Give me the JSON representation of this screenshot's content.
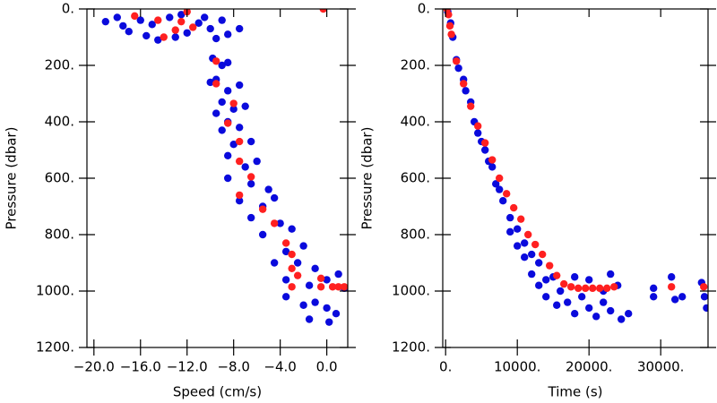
{
  "chart_data": [
    {
      "type": "scatter",
      "x_label": "Speed (cm/s)",
      "y_label": "Pressure (dbar)",
      "xlim": [
        -20.6,
        1.8
      ],
      "ylim": [
        0,
        1200
      ],
      "invert_y": true,
      "xticks": [
        {
          "value": -20,
          "label": "−20.0"
        },
        {
          "value": -16,
          "label": "−16.0"
        },
        {
          "value": -12,
          "label": "−12.0"
        },
        {
          "value": -8,
          "label": "−8.0"
        },
        {
          "value": -4,
          "label": "−4.0"
        },
        {
          "value": 0,
          "label": "0.0"
        }
      ],
      "yticks": [
        {
          "value": 0,
          "label": "0."
        },
        {
          "value": 200,
          "label": "200."
        },
        {
          "value": 400,
          "label": "400."
        },
        {
          "value": 600,
          "label": "600."
        },
        {
          "value": 800,
          "label": "800."
        },
        {
          "value": 1000,
          "label": "1000."
        },
        {
          "value": 1200,
          "label": "1200."
        }
      ],
      "series": [
        {
          "color": "#0a0adc",
          "x": [
            -19,
            -18,
            -17.5,
            -17,
            -16,
            -15.5,
            -15,
            -14.5,
            -13.5,
            -13,
            -12.5,
            -12,
            -11,
            -10.5,
            -10,
            -9.5,
            -9,
            -8.5,
            -7.5,
            -9.8,
            -9,
            -8.5,
            -9.5,
            -8.5,
            -7.5,
            -10,
            -9,
            -8,
            -7,
            -9.5,
            -8.5,
            -7.5,
            -9,
            -8,
            -6.5,
            -8.5,
            -7,
            -6,
            -8.5,
            -6.5,
            -5,
            -7.5,
            -5.5,
            -4.5,
            -6.5,
            -4,
            -3,
            -5.5,
            -3.5,
            -2,
            -4.5,
            -2.5,
            -1,
            -3.5,
            -1.5,
            0,
            1,
            1.5,
            -1,
            0,
            0.8,
            -2,
            -1.5,
            0.2,
            -3.5
          ],
          "values": [
            45,
            30,
            60,
            80,
            40,
            95,
            55,
            110,
            30,
            100,
            20,
            85,
            50,
            30,
            70,
            105,
            40,
            90,
            70,
            175,
            200,
            190,
            250,
            290,
            270,
            260,
            330,
            355,
            345,
            370,
            400,
            420,
            430,
            480,
            470,
            520,
            560,
            540,
            600,
            620,
            640,
            680,
            700,
            670,
            740,
            760,
            780,
            800,
            860,
            840,
            900,
            900,
            920,
            960,
            980,
            960,
            940,
            990,
            1040,
            1060,
            1080,
            1050,
            1100,
            1110,
            1020
          ]
        },
        {
          "color": "#ff2020",
          "x": [
            -16.5,
            -14.5,
            -12,
            -13,
            -11.5,
            -14,
            -12.5,
            -0.3,
            -9.5,
            -9.5,
            -8,
            -8.5,
            -7.5,
            -7.5,
            -6.5,
            -7.5,
            -5.5,
            -4.5,
            -3.5,
            -3,
            -3,
            -2.5,
            -3,
            -0.5,
            -0.5,
            0.5,
            1,
            1.5
          ],
          "values": [
            25,
            40,
            10,
            75,
            65,
            100,
            45,
            0,
            185,
            265,
            335,
            405,
            470,
            540,
            595,
            660,
            710,
            760,
            830,
            870,
            920,
            945,
            985,
            955,
            985,
            985,
            985,
            985
          ]
        }
      ]
    },
    {
      "type": "scatter",
      "x_label": "Time (s)",
      "y_label": "Pressure (dbar)",
      "xlim": [
        -400,
        36600
      ],
      "ylim": [
        0,
        1200
      ],
      "invert_y": true,
      "xticks": [
        {
          "value": 0,
          "label": "0."
        },
        {
          "value": 10000,
          "label": "10000."
        },
        {
          "value": 20000,
          "label": "20000."
        },
        {
          "value": 30000,
          "label": "30000."
        }
      ],
      "yticks": [
        {
          "value": 0,
          "label": "0."
        },
        {
          "value": 200,
          "label": "200."
        },
        {
          "value": 400,
          "label": "400."
        },
        {
          "value": 600,
          "label": "600."
        },
        {
          "value": 800,
          "label": "800."
        },
        {
          "value": 1000,
          "label": "1000."
        },
        {
          "value": 1200,
          "label": "1200."
        }
      ],
      "series": [
        {
          "color": "#0a0adc",
          "x": [
            300,
            700,
            1000,
            1500,
            1800,
            2500,
            2800,
            3500,
            4000,
            4500,
            5000,
            5500,
            6000,
            6500,
            7000,
            7500,
            8000,
            9000,
            9000,
            10000,
            10000,
            11000,
            11000,
            12000,
            12000,
            13000,
            13000,
            14000,
            14000,
            15000,
            15500,
            16000,
            17000,
            18000,
            18000,
            19000,
            20000,
            20000,
            21000,
            22000,
            22000,
            23000,
            23000,
            24000,
            24500,
            25500,
            29000,
            29000,
            31500,
            32000,
            33000,
            35700,
            36100,
            36400
          ],
          "values": [
            10,
            50,
            100,
            180,
            210,
            250,
            290,
            330,
            400,
            440,
            470,
            500,
            540,
            560,
            620,
            640,
            680,
            740,
            790,
            780,
            840,
            830,
            880,
            870,
            940,
            900,
            980,
            960,
            1020,
            950,
            1050,
            1000,
            1040,
            950,
            1080,
            1020,
            960,
            1060,
            1090,
            1000,
            1040,
            940,
            1070,
            980,
            1100,
            1080,
            990,
            1020,
            950,
            1030,
            1020,
            970,
            1020,
            1060
          ]
        },
        {
          "color": "#ff2020",
          "x": [
            200,
            400,
            600,
            800,
            1500,
            2500,
            3500,
            4500,
            5500,
            6500,
            7500,
            8500,
            9500,
            10500,
            11500,
            12500,
            13500,
            14500,
            15500,
            16500,
            17500,
            18500,
            19500,
            20500,
            21500,
            22500,
            23500,
            31500,
            36000
          ],
          "values": [
            0,
            20,
            60,
            90,
            185,
            265,
            345,
            415,
            475,
            535,
            600,
            655,
            705,
            745,
            800,
            835,
            870,
            910,
            945,
            975,
            985,
            990,
            990,
            990,
            990,
            990,
            985,
            985,
            985
          ]
        }
      ]
    }
  ]
}
